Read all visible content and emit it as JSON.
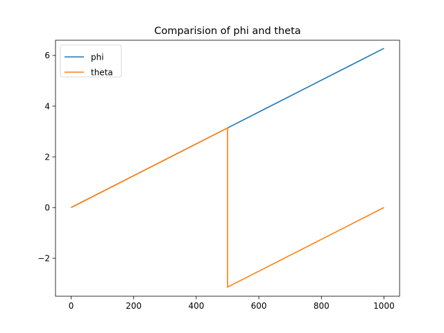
{
  "chart_data": {
    "type": "line",
    "title": "Comparision of phi and theta",
    "xlabel": "",
    "ylabel": "",
    "xlim": [
      -50,
      1050
    ],
    "ylim": [
      -3.5,
      6.6
    ],
    "xticks": [
      0,
      200,
      400,
      600,
      800,
      1000
    ],
    "xtick_labels": [
      "0",
      "200",
      "400",
      "600",
      "800",
      "1000"
    ],
    "yticks": [
      -2,
      0,
      2,
      4,
      6
    ],
    "ytick_labels": [
      "−2",
      "0",
      "2",
      "4",
      "6"
    ],
    "grid": false,
    "legend_position": "top-left",
    "series": [
      {
        "name": "phi",
        "color": "#1f77b4",
        "x": [
          0,
          500,
          1000
        ],
        "y": [
          0,
          3.14,
          6.28
        ]
      },
      {
        "name": "theta",
        "color": "#ff7f0e",
        "x": [
          0,
          500,
          500,
          1000
        ],
        "y": [
          0,
          3.14,
          -3.14,
          0
        ]
      }
    ]
  }
}
